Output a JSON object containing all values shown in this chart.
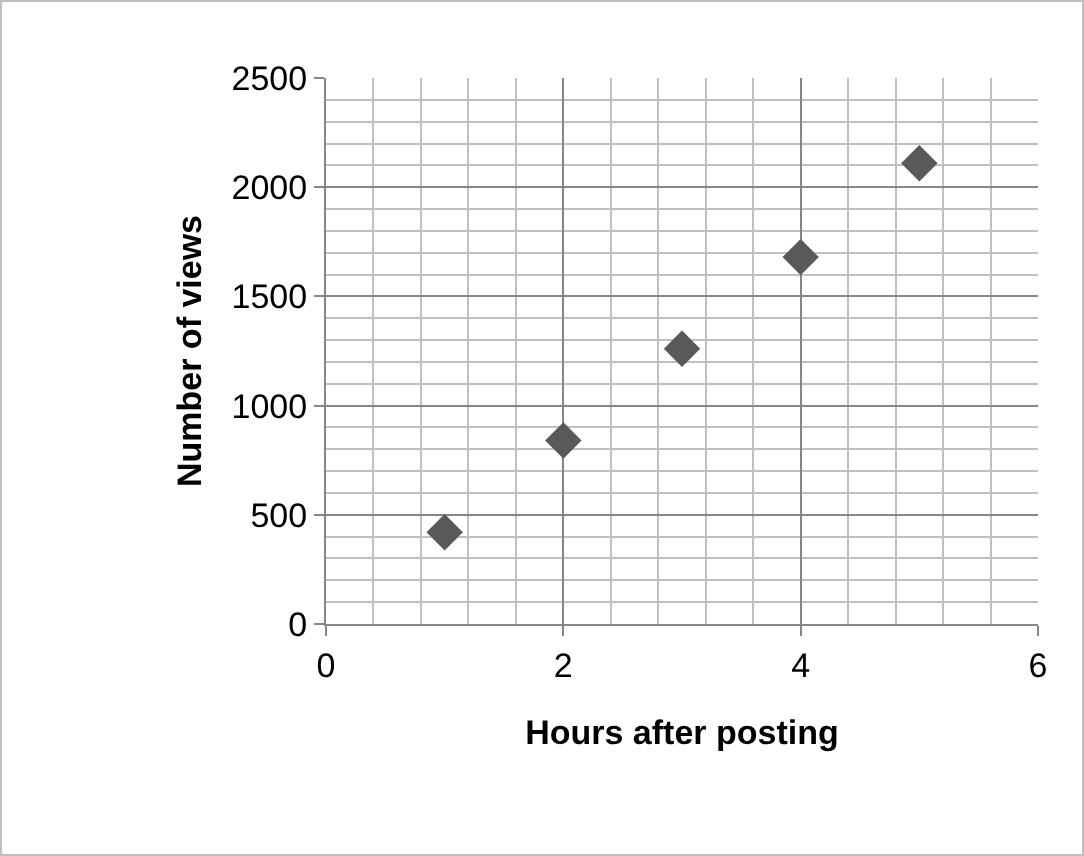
{
  "chart_data": {
    "type": "scatter",
    "xlabel": "Hours after posting",
    "ylabel": "Number of views",
    "x": [
      1,
      2,
      3,
      4,
      5
    ],
    "series": [
      {
        "color": "#595959",
        "values": [
          420,
          840,
          1260,
          1680,
          2110
        ]
      }
    ],
    "xlim": [
      0,
      6
    ],
    "xticks": [
      0,
      2,
      4,
      6
    ],
    "ylim": [
      0,
      2500
    ],
    "yticks": [
      0,
      500,
      1000,
      1500,
      2000,
      2500
    ],
    "grid": true,
    "marker": "diamond"
  }
}
